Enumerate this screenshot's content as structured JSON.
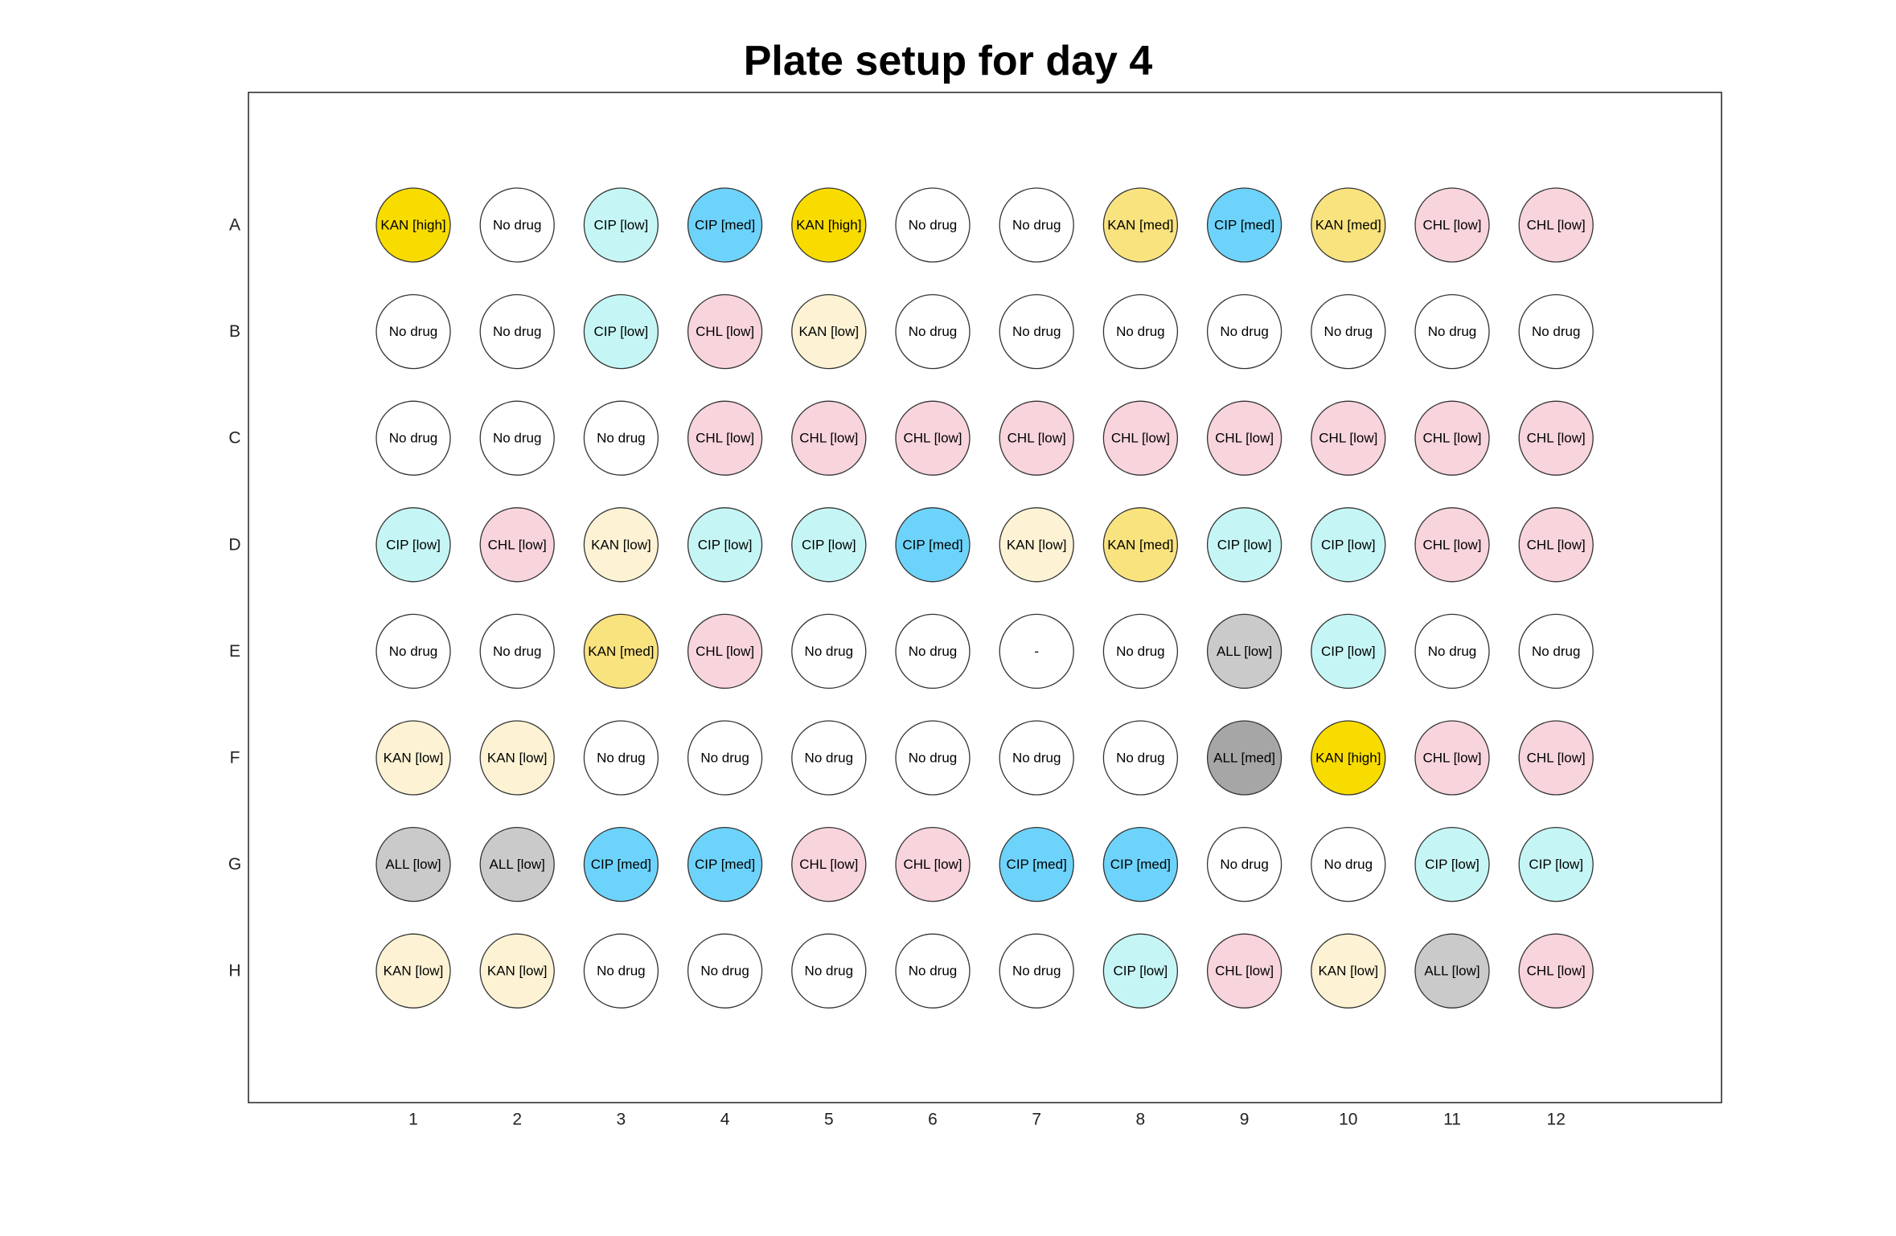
{
  "title": "Plate setup for day 4",
  "rows": [
    "A",
    "B",
    "C",
    "D",
    "E",
    "F",
    "G",
    "H"
  ],
  "columns": [
    "1",
    "2",
    "3",
    "4",
    "5",
    "6",
    "7",
    "8",
    "9",
    "10",
    "11",
    "12"
  ],
  "colors": {
    "No drug": "#ffffff",
    "-": "#ffffff",
    "KAN [low]": "#fdf3d4",
    "KAN [med]": "#f9e37f",
    "KAN [high]": "#f8dc00",
    "CIP [low]": "#c5f6f5",
    "CIP [med]": "#6dd3fa",
    "CHL [low]": "#f8d4dc",
    "ALL [low]": "#cacaca",
    "ALL [med]": "#a6a6a6"
  },
  "wells": [
    [
      "KAN [high]",
      "No drug",
      "CIP [low]",
      "CIP [med]",
      "KAN [high]",
      "No drug",
      "No drug",
      "KAN [med]",
      "CIP [med]",
      "KAN [med]",
      "CHL [low]",
      "CHL [low]"
    ],
    [
      "No drug",
      "No drug",
      "CIP [low]",
      "CHL [low]",
      "KAN [low]",
      "No drug",
      "No drug",
      "No drug",
      "No drug",
      "No drug",
      "No drug",
      "No drug"
    ],
    [
      "No drug",
      "No drug",
      "No drug",
      "CHL [low]",
      "CHL [low]",
      "CHL [low]",
      "CHL [low]",
      "CHL [low]",
      "CHL [low]",
      "CHL [low]",
      "CHL [low]",
      "CHL [low]"
    ],
    [
      "CIP [low]",
      "CHL [low]",
      "KAN [low]",
      "CIP [low]",
      "CIP [low]",
      "CIP [med]",
      "KAN [low]",
      "KAN [med]",
      "CIP [low]",
      "CIP [low]",
      "CHL [low]",
      "CHL [low]"
    ],
    [
      "No drug",
      "No drug",
      "KAN [med]",
      "CHL [low]",
      "No drug",
      "No drug",
      "-",
      "No drug",
      "ALL [low]",
      "CIP [low]",
      "No drug",
      "No drug"
    ],
    [
      "KAN [low]",
      "KAN [low]",
      "No drug",
      "No drug",
      "No drug",
      "No drug",
      "No drug",
      "No drug",
      "ALL [med]",
      "KAN [high]",
      "CHL [low]",
      "CHL [low]"
    ],
    [
      "ALL [low]",
      "ALL [low]",
      "CIP [med]",
      "CIP [med]",
      "CHL [low]",
      "CHL [low]",
      "CIP [med]",
      "CIP [med]",
      "No drug",
      "No drug",
      "CIP [low]",
      "CIP [low]"
    ],
    [
      "KAN [low]",
      "KAN [low]",
      "No drug",
      "No drug",
      "No drug",
      "No drug",
      "No drug",
      "CIP [low]",
      "CHL [low]",
      "KAN [low]",
      "ALL [low]",
      "CHL [low]"
    ]
  ]
}
